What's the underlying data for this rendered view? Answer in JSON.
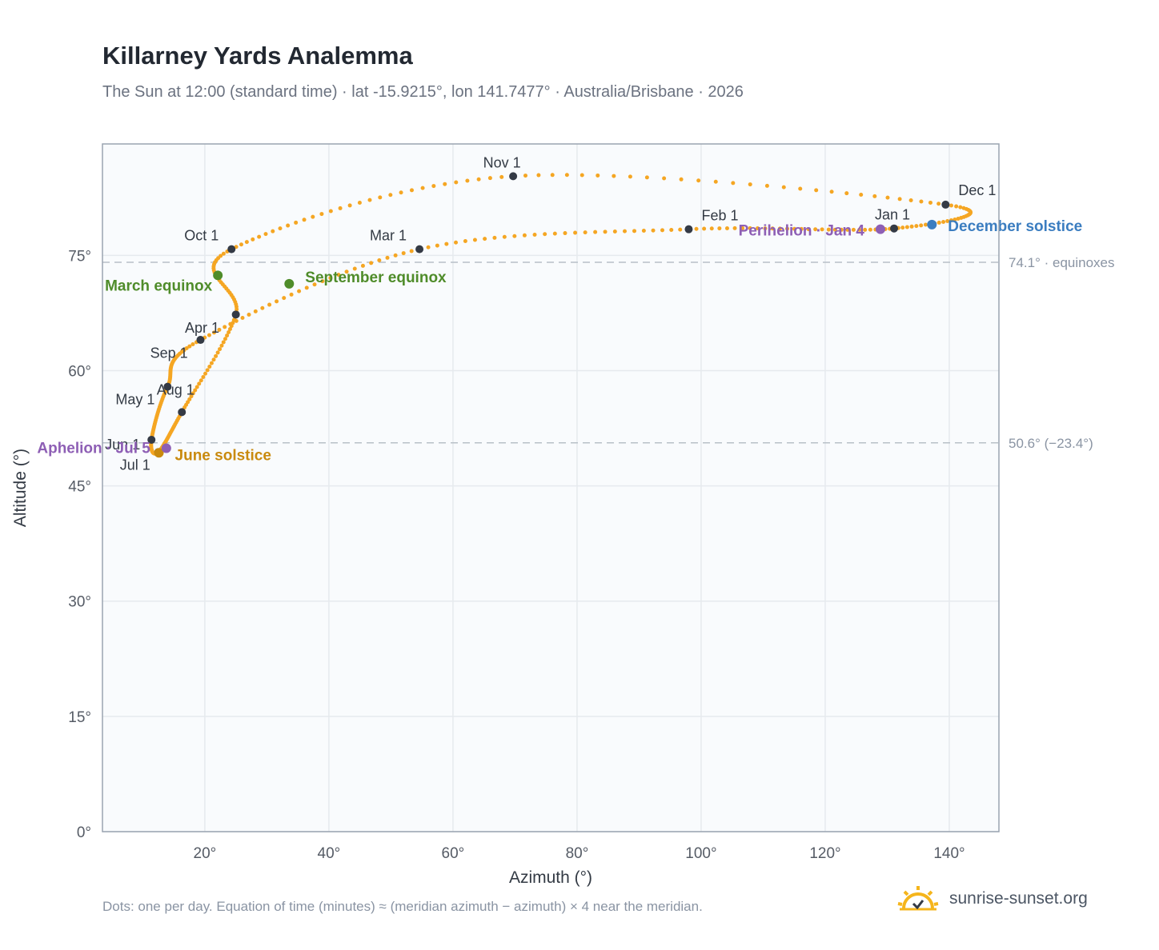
{
  "header": {
    "title": "Killarney Yards Analemma",
    "subtitle": "The Sun at 12:00 (standard time) · lat -15.9215°, lon 141.7477° · Australia/Brisbane · 2026"
  },
  "footer": {
    "note": "Dots: one per day. Equation of time (minutes) ≈ (meridian azimuth − azimuth) × 4 near the meridian.",
    "brand": "sunrise-sunset.org"
  },
  "colors": {
    "curve": "#f5a623",
    "month_marker": "#343a45",
    "equinox": "#4f8c2a",
    "june_solstice": "#c98a0e",
    "december_solstice": "#3b7dc0",
    "apsis": "#8e5fb5",
    "reference_line": "#b8c0c8",
    "plot_background": "#f9fbfd",
    "grid": "#e6eaee",
    "frame": "#9aa4b0",
    "brand_icon": "#f5b51c"
  },
  "chart_data": {
    "type": "scatter",
    "xlabel": "Azimuth (°)",
    "ylabel": "Altitude (°)",
    "xlim": [
      3.5,
      148
    ],
    "ylim": [
      0,
      89.5
    ],
    "xticks": [
      20,
      40,
      60,
      80,
      100,
      120,
      140
    ],
    "yticks": [
      0,
      15,
      30,
      45,
      60,
      75
    ],
    "xtick_labels": [
      "20°",
      "40°",
      "60°",
      "80°",
      "100°",
      "120°",
      "140°"
    ],
    "ytick_labels": [
      "0°",
      "15°",
      "30°",
      "45°",
      "60°",
      "75°"
    ],
    "grid": true,
    "reference_lines": [
      {
        "altitude": 74.1,
        "label": "74.1° · equinoxes"
      },
      {
        "altitude": 50.6,
        "label": "50.6° (−23.4°)"
      }
    ],
    "month_markers": [
      {
        "label": "Jan 1",
        "az": 131.1,
        "alt": 78.5
      },
      {
        "label": "Feb 1",
        "az": 98.0,
        "alt": 78.4
      },
      {
        "label": "Mar 1",
        "az": 54.6,
        "alt": 75.8
      },
      {
        "label": "Apr 1",
        "az": 19.3,
        "alt": 64.0
      },
      {
        "label": "May 1",
        "az": 14.0,
        "alt": 57.9
      },
      {
        "label": "Jun 1",
        "az": 11.4,
        "alt": 51.0
      },
      {
        "label": "Jul 1",
        "az": 12.5,
        "alt": 49.4
      },
      {
        "label": "Aug 1",
        "az": 16.3,
        "alt": 54.6
      },
      {
        "label": "Sep 1",
        "az": 25.0,
        "alt": 67.3
      },
      {
        "label": "Oct 1",
        "az": 24.3,
        "alt": 75.8
      },
      {
        "label": "Nov 1",
        "az": 69.7,
        "alt": 85.3
      },
      {
        "label": "Dec 1",
        "az": 139.4,
        "alt": 81.6
      }
    ],
    "events": [
      {
        "label": "March equinox",
        "az": 22.1,
        "alt": 72.4,
        "kind": "equinox"
      },
      {
        "label": "September equinox",
        "az": 33.6,
        "alt": 71.3,
        "kind": "equinox"
      },
      {
        "label": "June solstice",
        "az": 12.6,
        "alt": 49.3,
        "kind": "june_solstice"
      },
      {
        "label": "December solstice",
        "az": 137.2,
        "alt": 79.0,
        "kind": "december_solstice"
      },
      {
        "label": "Perihelion · Jan 4",
        "az": 128.9,
        "alt": 78.4,
        "kind": "apsis"
      },
      {
        "label": "Aphelion · Jul 5",
        "az": 13.8,
        "alt": 49.9,
        "kind": "apsis"
      }
    ]
  }
}
